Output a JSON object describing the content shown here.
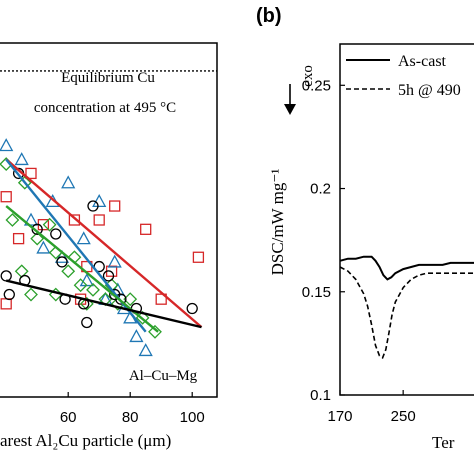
{
  "chart_data": [
    {
      "type": "scatter",
      "xlim": [
        38,
        108
      ],
      "ylim": [
        0.5,
        4.3
      ],
      "xticks": [
        60,
        80,
        100
      ],
      "xlabel": "arest Al₂Cu particle (μm)",
      "ylabel": "",
      "annotations": {
        "equilibrium_line1": "Equilibrium Cu",
        "equilibrium_line2": "concentration at 495 °C",
        "alloy": "Al–Cu–Mg"
      },
      "equilibrium_y": 4.0,
      "series": [
        {
          "marker": "square",
          "color": "#d62728",
          "points": [
            [
              40,
              2.65
            ],
            [
              48,
              2.9
            ],
            [
              62,
              2.4
            ],
            [
              70,
              2.4
            ],
            [
              75,
              2.55
            ],
            [
              74,
              1.85
            ],
            [
              85,
              2.3
            ],
            [
              66,
              1.9
            ],
            [
              102,
              2.0
            ],
            [
              52,
              2.35
            ],
            [
              44,
              2.2
            ],
            [
              64,
              1.55
            ],
            [
              90,
              1.55
            ],
            [
              40,
              1.5
            ]
          ],
          "trend": [
            [
              40,
              3.05
            ],
            [
              103,
              1.25
            ]
          ]
        },
        {
          "marker": "triangle",
          "color": "#1f77b4",
          "points": [
            [
              40,
              3.2
            ],
            [
              45,
              3.05
            ],
            [
              55,
              2.6
            ],
            [
              60,
              2.8
            ],
            [
              48,
              2.4
            ],
            [
              52,
              2.1
            ],
            [
              58,
              2.0
            ],
            [
              65,
              2.2
            ],
            [
              70,
              2.6
            ],
            [
              75,
              1.95
            ],
            [
              72,
              1.55
            ],
            [
              78,
              1.45
            ],
            [
              80,
              1.35
            ],
            [
              82,
              1.15
            ],
            [
              85,
              1.0
            ],
            [
              76,
              1.65
            ],
            [
              66,
              1.75
            ]
          ],
          "trend": [
            [
              40,
              3.05
            ],
            [
              85,
              1.2
            ]
          ]
        },
        {
          "marker": "diamond",
          "color": "#2ca02c",
          "points": [
            [
              40,
              3.0
            ],
            [
              42,
              2.4
            ],
            [
              45,
              1.85
            ],
            [
              50,
              2.2
            ],
            [
              54,
              2.35
            ],
            [
              48,
              1.6
            ],
            [
              56,
              1.6
            ],
            [
              60,
              1.85
            ],
            [
              62,
              2.0
            ],
            [
              64,
              1.7
            ],
            [
              66,
              1.5
            ],
            [
              68,
              1.65
            ],
            [
              72,
              1.55
            ],
            [
              74,
              1.7
            ],
            [
              76,
              1.5
            ],
            [
              80,
              1.55
            ],
            [
              84,
              1.35
            ],
            [
              88,
              1.2
            ],
            [
              46,
              2.8
            ],
            [
              56,
              2.05
            ]
          ],
          "trend": [
            [
              40,
              2.55
            ],
            [
              89,
              1.2
            ]
          ]
        },
        {
          "marker": "circle",
          "color": "#000000",
          "points": [
            [
              40,
              1.8
            ],
            [
              41,
              1.6
            ],
            [
              44,
              2.9
            ],
            [
              50,
              2.3
            ],
            [
              56,
              2.25
            ],
            [
              58,
              1.95
            ],
            [
              65,
              1.5
            ],
            [
              68,
              2.55
            ],
            [
              70,
              1.9
            ],
            [
              73,
              1.8
            ],
            [
              75,
              1.6
            ],
            [
              77,
              1.55
            ],
            [
              82,
              1.45
            ],
            [
              100,
              1.45
            ],
            [
              46,
              1.75
            ],
            [
              66,
              1.3
            ],
            [
              59,
              1.55
            ]
          ],
          "trend": [
            [
              40,
              1.75
            ],
            [
              103,
              1.25
            ]
          ]
        }
      ]
    },
    {
      "type": "line",
      "title": "(b)",
      "xlim": [
        170,
        360
      ],
      "ylim": [
        0.1,
        0.27
      ],
      "xticks": [
        170,
        250
      ],
      "yticks": [
        0.1,
        0.15,
        0.2,
        0.25
      ],
      "ylabel": "DSC/mW mg⁻¹",
      "exo_label": "exo",
      "xlabel_partial": "Ter",
      "legend": [
        "As-cast",
        "5h @ 490"
      ],
      "series": [
        {
          "name": "As-cast",
          "style": "solid",
          "x": [
            170,
            180,
            190,
            200,
            210,
            215,
            220,
            225,
            230,
            235,
            240,
            250,
            260,
            270,
            280,
            290,
            300,
            310,
            320,
            330,
            340,
            350,
            360
          ],
          "y": [
            0.165,
            0.166,
            0.166,
            0.167,
            0.167,
            0.165,
            0.162,
            0.158,
            0.156,
            0.157,
            0.159,
            0.161,
            0.162,
            0.163,
            0.163,
            0.163,
            0.163,
            0.164,
            0.164,
            0.164,
            0.164,
            0.164,
            0.164
          ]
        },
        {
          "name": "5h @ 490",
          "style": "dashed",
          "x": [
            170,
            180,
            190,
            200,
            205,
            210,
            215,
            220,
            224,
            228,
            232,
            236,
            240,
            250,
            260,
            270,
            280,
            290,
            300,
            310,
            320,
            330,
            340,
            350,
            360
          ],
          "y": [
            0.162,
            0.16,
            0.156,
            0.149,
            0.143,
            0.134,
            0.124,
            0.119,
            0.118,
            0.122,
            0.13,
            0.139,
            0.145,
            0.152,
            0.156,
            0.158,
            0.159,
            0.159,
            0.159,
            0.159,
            0.159,
            0.159,
            0.159,
            0.159,
            0.159
          ]
        }
      ]
    }
  ]
}
